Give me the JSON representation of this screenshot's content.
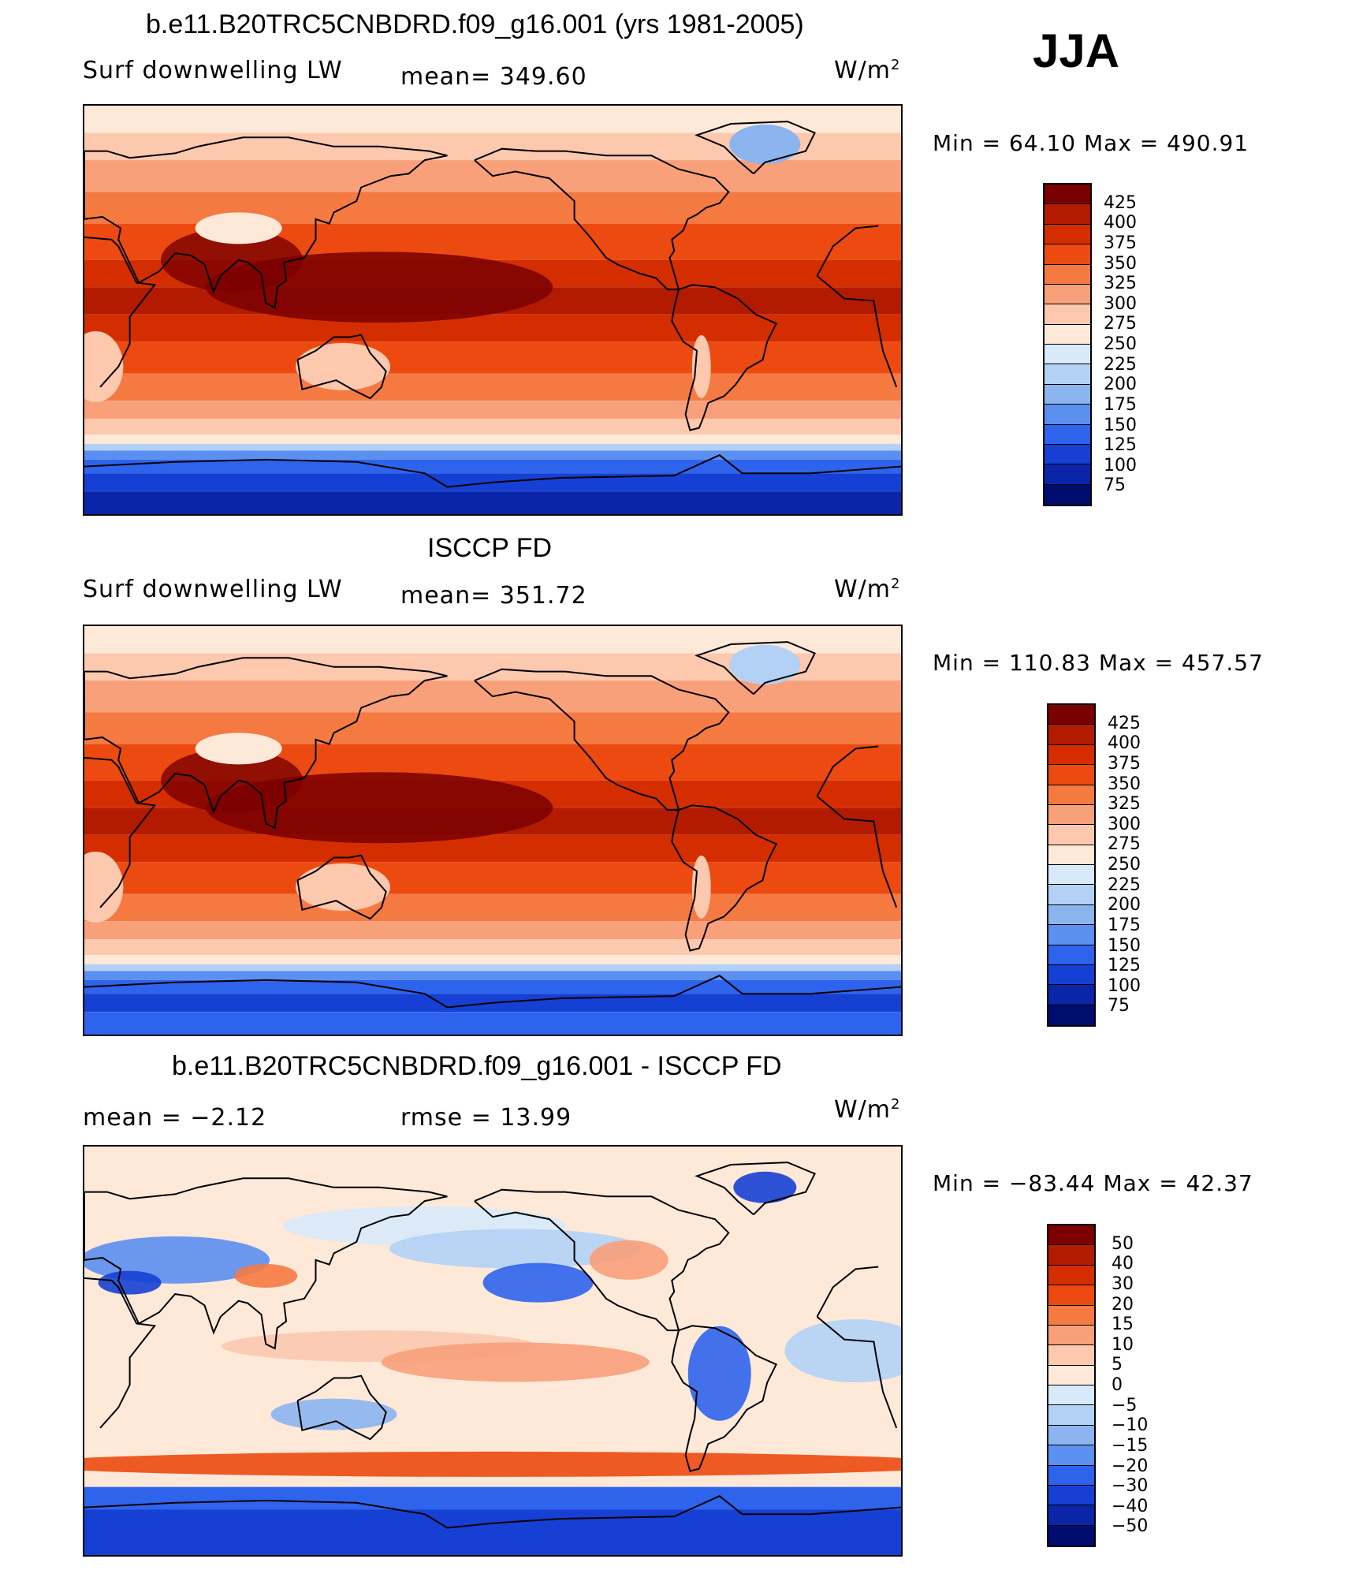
{
  "season": "JJA",
  "panels": [
    {
      "title": "b.e11.B20TRC5CNBDRD.f09_g16.001 (yrs 1981-2005)",
      "left_label": "Surf downwelling LW",
      "center_label": "mean=  349.60",
      "unit": "W/m",
      "unit_sup": "2",
      "minmax": "Min =   64.10 Max  =  490.91",
      "colorbar": {
        "labels": [
          "425",
          "400",
          "375",
          "350",
          "325",
          "300",
          "275",
          "250",
          "225",
          "200",
          "175",
          "150",
          "125",
          "100",
          "75"
        ],
        "colors": [
          "#7a0000",
          "#b31b00",
          "#d42e00",
          "#ec4a10",
          "#f57a42",
          "#f8a07a",
          "#fcc8ae",
          "#fee9d9",
          "#d8eafa",
          "#b3d1f5",
          "#8cb5f0",
          "#5b8ff0",
          "#2e64ec",
          "#1540d3",
          "#0a25a8",
          "#000d6e"
        ]
      },
      "scheme": "abs"
    },
    {
      "title": "ISCCP FD",
      "left_label": "Surf downwelling LW",
      "center_label": "mean=  351.72",
      "unit": "W/m",
      "unit_sup": "2",
      "minmax": "Min  =  110.83  Max  =  457.57",
      "colorbar": {
        "labels": [
          "425",
          "400",
          "375",
          "350",
          "325",
          "300",
          "275",
          "250",
          "225",
          "200",
          "175",
          "150",
          "125",
          "100",
          "75"
        ],
        "colors": [
          "#7a0000",
          "#b31b00",
          "#d42e00",
          "#ec4a10",
          "#f57a42",
          "#f8a07a",
          "#fcc8ae",
          "#fee9d9",
          "#d8eafa",
          "#b3d1f5",
          "#8cb5f0",
          "#5b8ff0",
          "#2e64ec",
          "#1540d3",
          "#0a25a8",
          "#000d6e"
        ]
      },
      "scheme": "abs"
    },
    {
      "title": "b.e11.B20TRC5CNBDRD.f09_g16.001 - ISCCP FD",
      "left_label": "mean  =    −2.12",
      "center_label": "rmse  =    13.99",
      "unit": "W/m",
      "unit_sup": "2",
      "minmax": "Min  =  −83.44  Max  =    42.37",
      "colorbar": {
        "labels": [
          "50",
          "40",
          "30",
          "20",
          "15",
          "10",
          "5",
          "0",
          "−5",
          "−10",
          "−15",
          "−20",
          "−30",
          "−40",
          "−50"
        ],
        "colors": [
          "#7a0000",
          "#b31b00",
          "#d42e00",
          "#ec4a10",
          "#f57a42",
          "#f8a07a",
          "#fcc8ae",
          "#fee9d9",
          "#d8eafa",
          "#b3d1f5",
          "#8cb5f0",
          "#5b8ff0",
          "#2e64ec",
          "#1540d3",
          "#0a25a8",
          "#000d6e"
        ]
      },
      "scheme": "diff"
    }
  ]
}
